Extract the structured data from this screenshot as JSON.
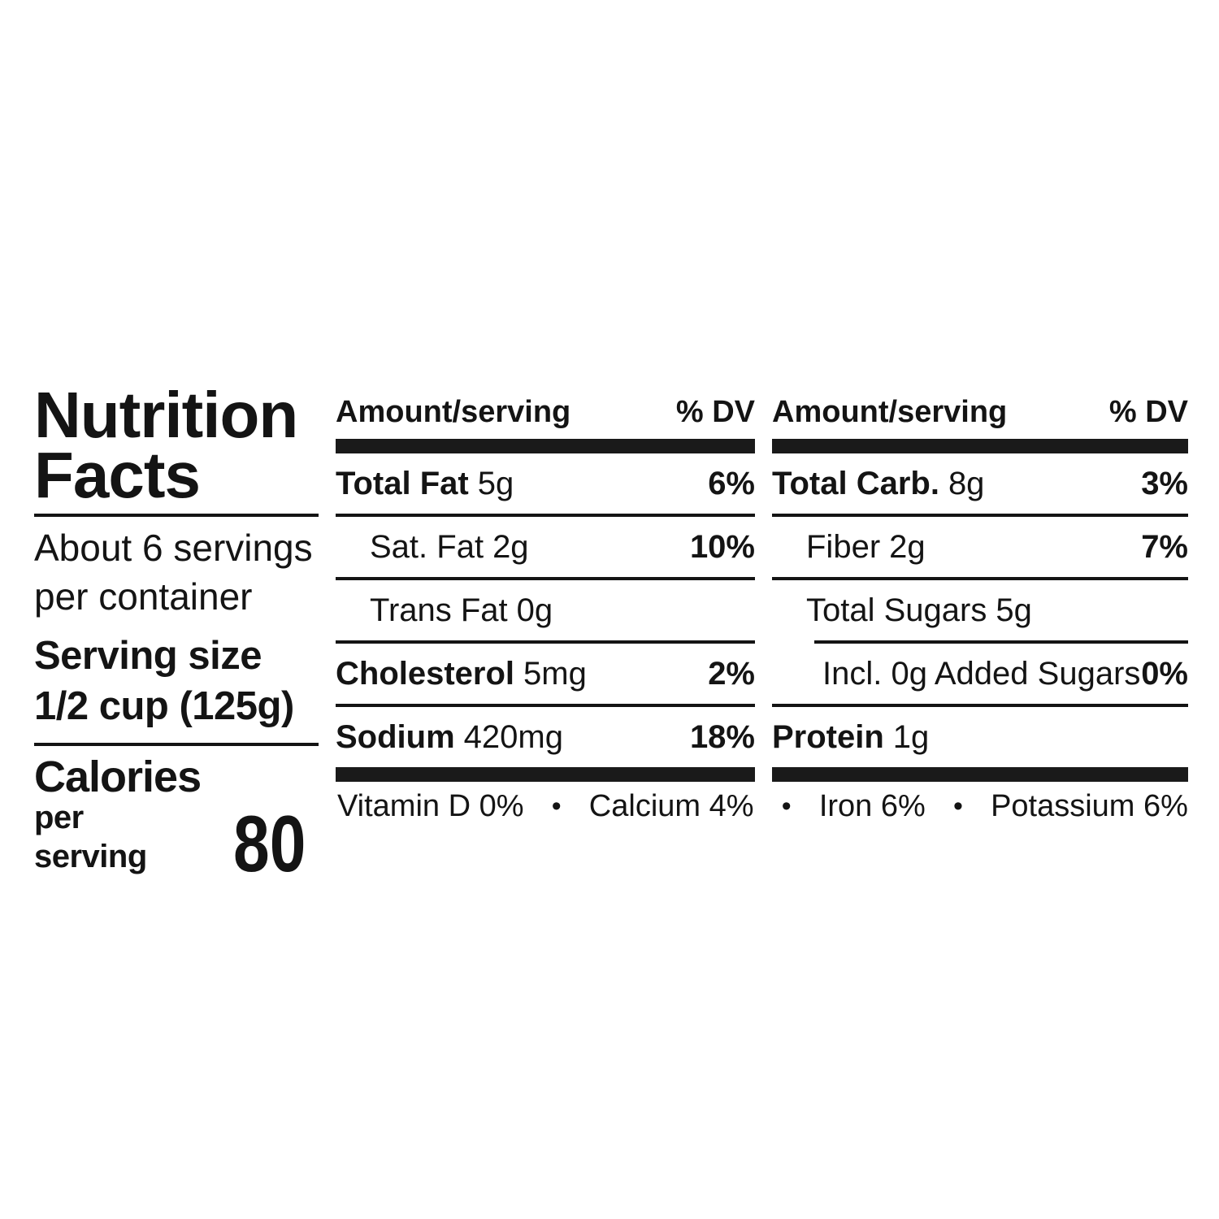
{
  "label": {
    "title_line1": "Nutrition",
    "title_line2": "Facts",
    "servings_line1": "About 6 servings",
    "servings_line2": "per container",
    "serving_size_label": "Serving size",
    "serving_size_value": "1/2 cup (125g)",
    "calories_label": "Calories",
    "calories_sub": "per serving",
    "calories_value": "80"
  },
  "columns": [
    {
      "header_amount": "Amount/serving",
      "header_dv": "% DV",
      "rows": [
        {
          "name": "Total Fat",
          "amount": "5g",
          "dv": "6%"
        },
        {
          "name": "Sat. Fat",
          "amount": "2g",
          "dv": "10%"
        },
        {
          "name": "Trans Fat",
          "amount": "0g",
          "dv": ""
        },
        {
          "name": "Cholesterol",
          "amount": "5mg",
          "dv": "2%"
        },
        {
          "name": "Sodium",
          "amount": "420mg",
          "dv": "18%"
        }
      ]
    },
    {
      "header_amount": "Amount/serving",
      "header_dv": "% DV",
      "rows": [
        {
          "name": "Total Carb.",
          "amount": "8g",
          "dv": "3%"
        },
        {
          "name": "Fiber",
          "amount": "2g",
          "dv": "7%"
        },
        {
          "name": "Total Sugars",
          "amount": "5g",
          "dv": ""
        },
        {
          "name": "Incl. 0g Added Sugars",
          "amount": "",
          "dv": "0%"
        },
        {
          "name": "Protein",
          "amount": "1g",
          "dv": ""
        }
      ]
    }
  ],
  "micronutrients": {
    "separator": "•",
    "items": [
      {
        "label": "Vitamin D 0%"
      },
      {
        "label": "Calcium 4%"
      },
      {
        "label": "Iron 6%"
      },
      {
        "label": "Potassium 6%"
      }
    ]
  },
  "colors": {
    "text": "#141414",
    "background": "#ffffff"
  }
}
